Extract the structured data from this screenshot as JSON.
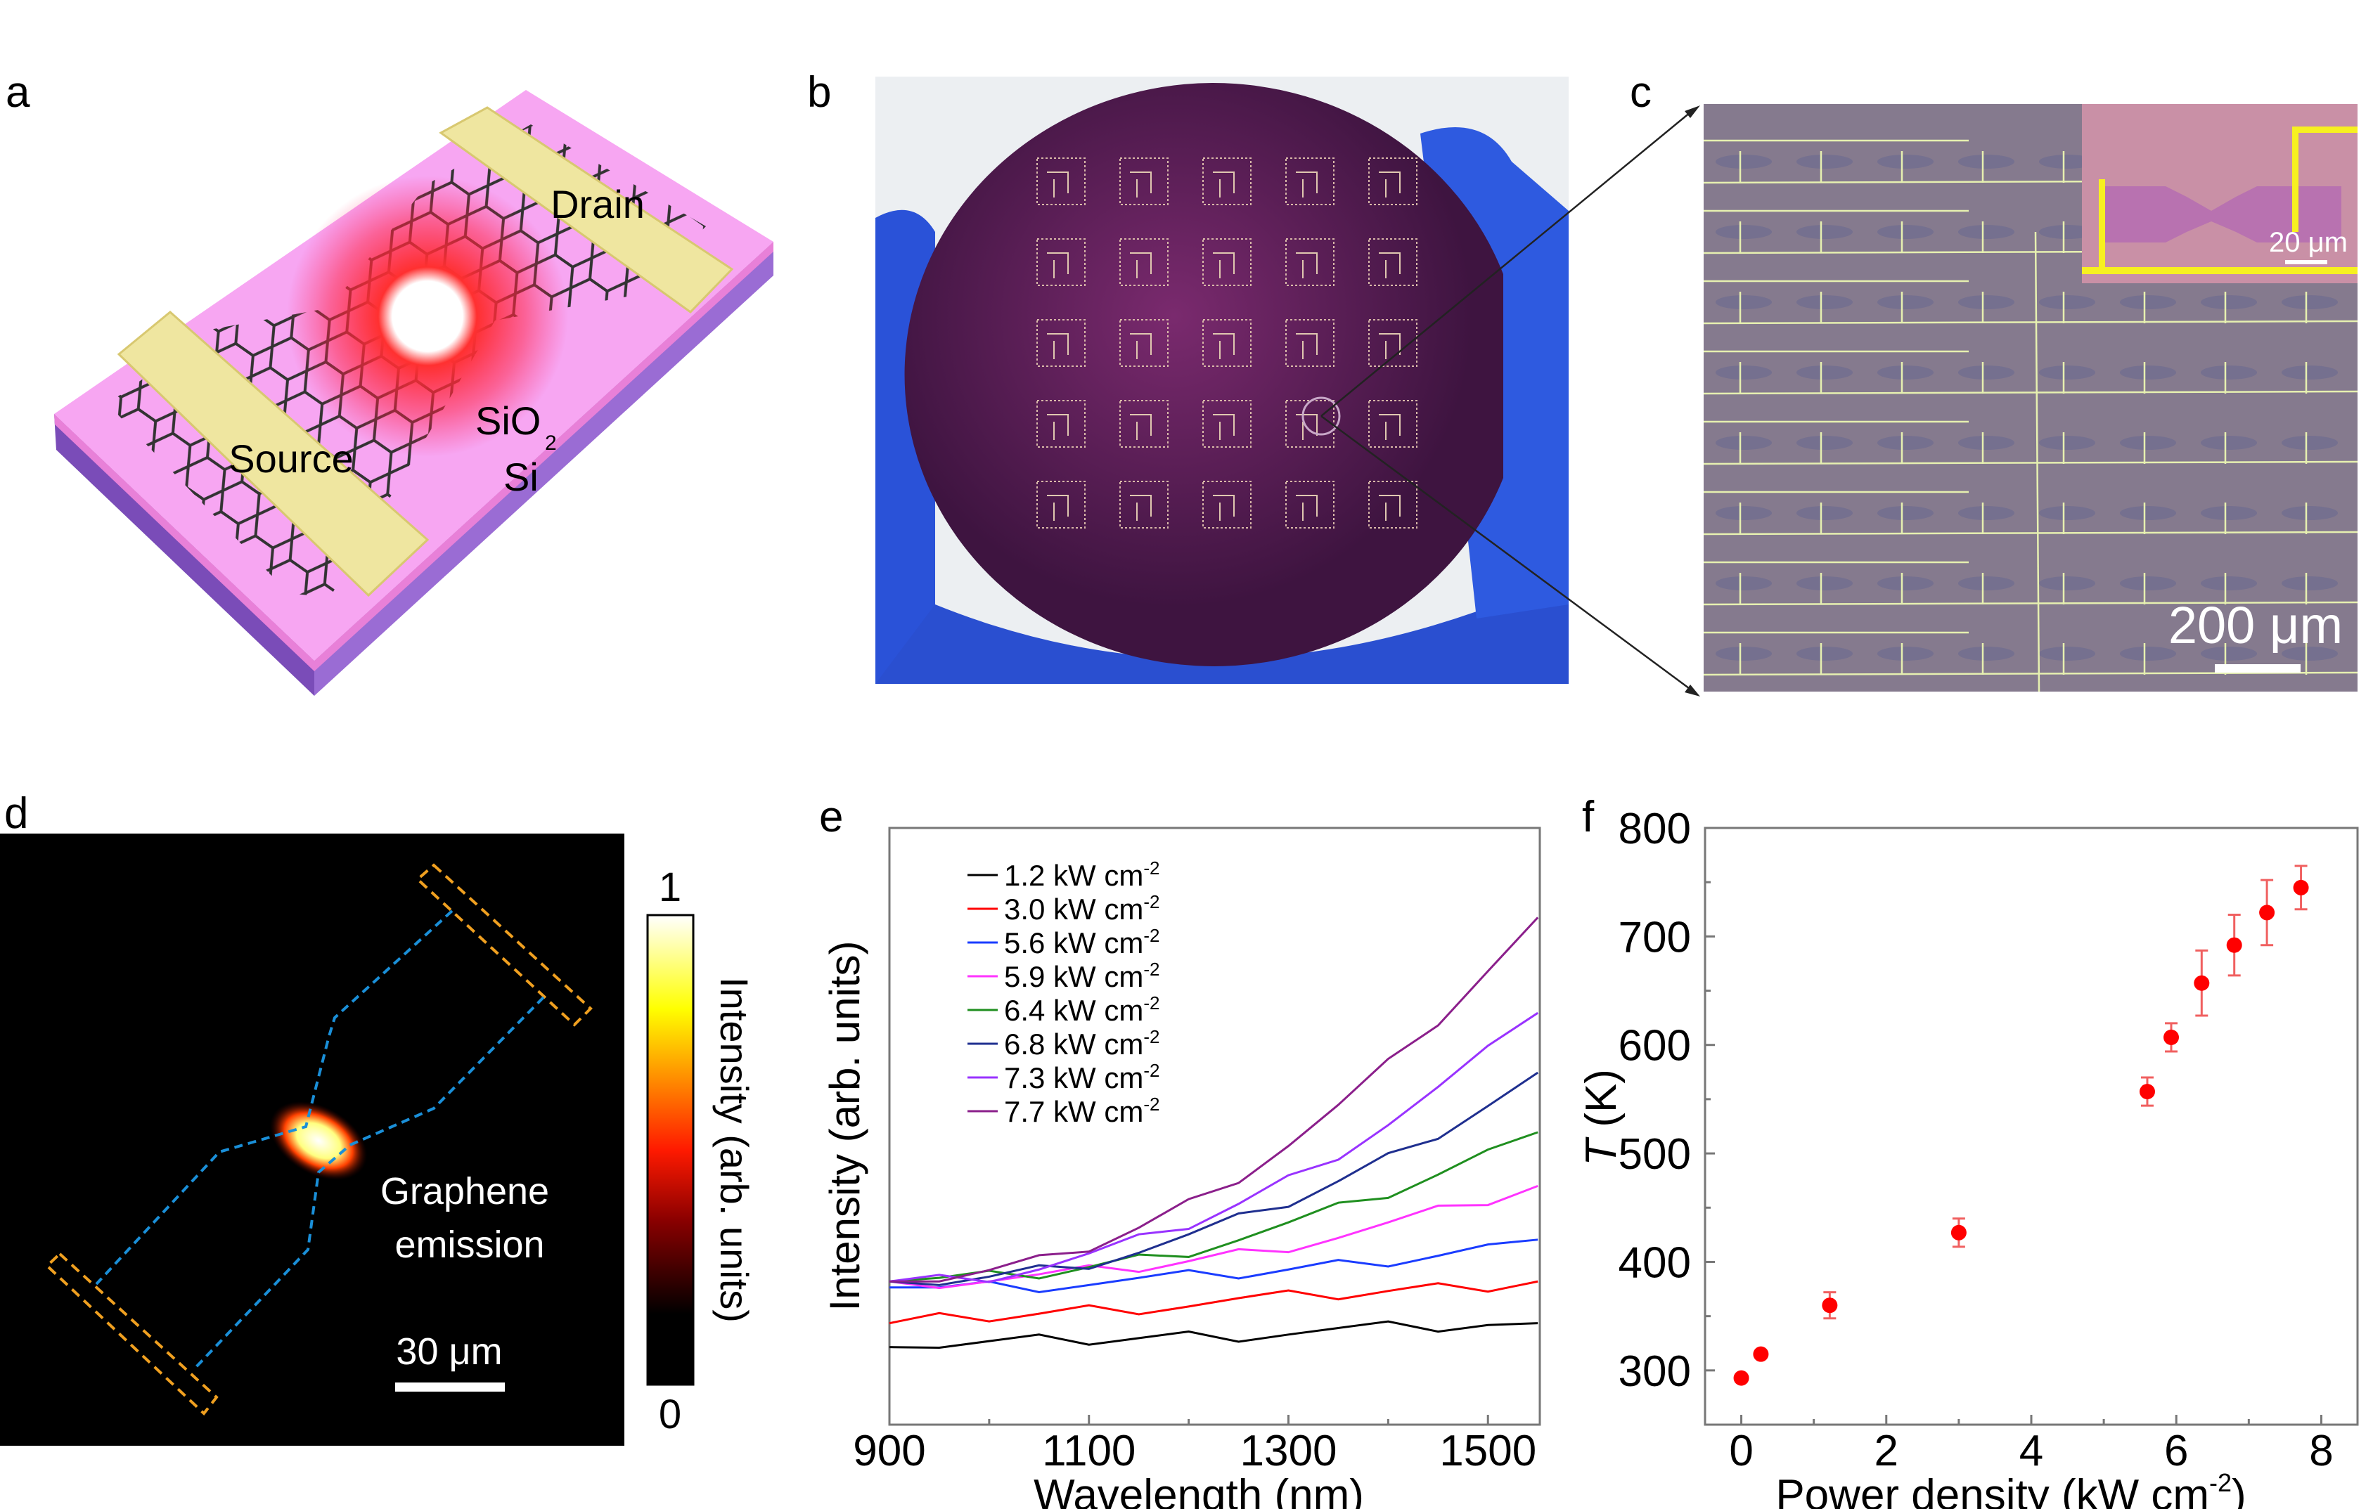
{
  "panels": {
    "a": {
      "label": "a",
      "drain": "Drain",
      "source": "Source",
      "sio2": "SiO",
      "sio2_sub": "2",
      "si": "Si"
    },
    "b": {
      "label": "b"
    },
    "c": {
      "label": "c",
      "inset_scale": "20 μm",
      "scale": "200 μm"
    },
    "d": {
      "label": "d",
      "emission_line1": "Graphene",
      "emission_line2": "emission",
      "scale": "30 μm",
      "colorbar_max": "1",
      "colorbar_min": "0",
      "colorbar_label": "Intensity (arb. units)",
      "colormap": [
        "#000000",
        "#5a0000",
        "#c80000",
        "#ff3c00",
        "#ff9600",
        "#ffff00",
        "#ffffff"
      ]
    },
    "e": {
      "label": "e"
    },
    "f": {
      "label": "f"
    }
  },
  "colors": {
    "pink_substrate": "#f5a0f0",
    "si_purple": "#8a5cc4",
    "gold": "#eee49a",
    "marker_red": "#ff0000",
    "d_contact": "#f0a020",
    "d_outline": "#1a8fd8"
  },
  "chart_data": [
    {
      "panel": "e",
      "type": "line",
      "xlabel": "Wavelength (nm)",
      "ylabel": "Intensity (arb. units)",
      "xlim": [
        900,
        1552
      ],
      "ylim": [
        0,
        1
      ],
      "xticks": [
        900,
        1100,
        1300,
        1500
      ],
      "xminor": [
        1000,
        1200,
        1400
      ],
      "yticks_shown": false,
      "grid": false,
      "legend": "top-left",
      "x": [
        900,
        950,
        1000,
        1050,
        1100,
        1150,
        1200,
        1250,
        1300,
        1350,
        1400,
        1450,
        1500,
        1550
      ],
      "series": [
        {
          "name": "1.2 kW cm",
          "sup": "-2",
          "color": "#000000",
          "values": [
            0.13,
            0.133,
            0.136,
            0.139,
            0.142,
            0.145,
            0.148,
            0.151,
            0.155,
            0.158,
            0.161,
            0.164,
            0.167,
            0.17
          ]
        },
        {
          "name": "3.0 kW cm",
          "sup": "-2",
          "color": "#ff0000",
          "values": [
            0.17,
            0.175,
            0.181,
            0.186,
            0.192,
            0.197,
            0.202,
            0.208,
            0.213,
            0.218,
            0.224,
            0.229,
            0.235,
            0.24
          ]
        },
        {
          "name": "5.6 kW cm",
          "sup": "-2",
          "color": "#1a3cff",
          "values": [
            0.23,
            0.23,
            0.232,
            0.234,
            0.238,
            0.242,
            0.247,
            0.253,
            0.26,
            0.268,
            0.277,
            0.287,
            0.298,
            0.31
          ]
        },
        {
          "name": "5.9 kW cm",
          "sup": "-2",
          "color": "#ff33ff",
          "values": [
            0.24,
            0.241,
            0.244,
            0.248,
            0.255,
            0.264,
            0.274,
            0.286,
            0.301,
            0.317,
            0.335,
            0.355,
            0.376,
            0.4
          ]
        },
        {
          "name": "6.4 kW cm",
          "sup": "-2",
          "color": "#1f8f1f",
          "values": [
            0.24,
            0.242,
            0.246,
            0.253,
            0.264,
            0.277,
            0.293,
            0.313,
            0.335,
            0.36,
            0.388,
            0.419,
            0.453,
            0.49
          ]
        },
        {
          "name": "6.8 kW cm",
          "sup": "-2",
          "color": "#1f2f8f",
          "values": [
            0.24,
            0.242,
            0.248,
            0.259,
            0.273,
            0.292,
            0.315,
            0.342,
            0.373,
            0.408,
            0.447,
            0.491,
            0.538,
            0.59
          ]
        },
        {
          "name": "7.3 kW cm",
          "sup": "-2",
          "color": "#9933ff",
          "values": [
            0.24,
            0.243,
            0.251,
            0.264,
            0.283,
            0.307,
            0.336,
            0.37,
            0.41,
            0.456,
            0.506,
            0.562,
            0.623,
            0.69
          ]
        },
        {
          "name": "7.7 kW cm",
          "sup": "-2",
          "color": "#8b1f8b",
          "values": [
            0.24,
            0.244,
            0.255,
            0.272,
            0.298,
            0.33,
            0.37,
            0.417,
            0.471,
            0.532,
            0.601,
            0.677,
            0.76,
            0.85
          ]
        }
      ]
    },
    {
      "panel": "f",
      "type": "scatter",
      "xlabel": "Power density (kW cm",
      "xlabel_sup": "-2",
      "xlabel_end": ")",
      "ylabel": "T",
      "ylabel_unit": " (K)",
      "xlim": [
        -0.5,
        8.5
      ],
      "ylim": [
        250,
        800
      ],
      "xticks": [
        0,
        2,
        4,
        6,
        8
      ],
      "xminor": [
        1,
        3,
        5,
        7
      ],
      "yticks": [
        300,
        400,
        500,
        600,
        700,
        800
      ],
      "yminor": [
        350,
        450,
        550,
        650,
        750
      ],
      "grid": false,
      "color": "#ff0000",
      "points": [
        {
          "x": 0.0,
          "y": 293,
          "err": 0
        },
        {
          "x": 0.27,
          "y": 315,
          "err": 0
        },
        {
          "x": 1.22,
          "y": 360,
          "err": 12
        },
        {
          "x": 3.0,
          "y": 427,
          "err": 13
        },
        {
          "x": 5.6,
          "y": 557,
          "err": 13
        },
        {
          "x": 5.93,
          "y": 607,
          "err": 13
        },
        {
          "x": 6.35,
          "y": 657,
          "err": 30
        },
        {
          "x": 6.8,
          "y": 692,
          "err": 28
        },
        {
          "x": 7.25,
          "y": 722,
          "err": 30
        },
        {
          "x": 7.72,
          "y": 745,
          "err": 20
        }
      ]
    }
  ]
}
